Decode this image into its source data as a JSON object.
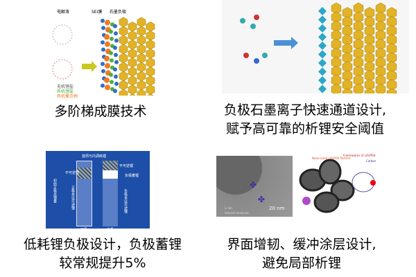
{
  "panels": [
    {
      "caption": [
        "多阶梯成膜技术"
      ],
      "figure_labels": {
        "electrolyte": "电解液",
        "sei": "SEI膜",
        "anode": "石墨负极",
        "legend": [
          "无机锂盐",
          "有机锂盐",
          "有机聚合物"
        ]
      },
      "colors": {
        "inorganic": "#2f6fc9",
        "organic": "#4caf3f",
        "polymer": "#f07a22",
        "graphite": "#e2b326"
      }
    },
    {
      "caption": [
        "负极石墨离子快速通道设计,",
        "赋予高可靠的析锂安全阈值"
      ],
      "colors": {
        "hex": "#2aa7c9",
        "graphite": "#e2b326",
        "arrow": "#4a90d9"
      }
    },
    {
      "caption": [
        "低耗锂负极设计，负极蓄锂",
        "较常规提升5%"
      ],
      "figure_labels": {
        "top": "首周与内调耗锂",
        "irrev1": "不可逆锂",
        "irrev2": "不可逆锂",
        "total": "初始正极总锂量",
        "cathode_rev": "正极本征可逆锂",
        "anode_store": "负极蓄锂",
        "anode_rev": "负极本征可逆锂",
        "cathode": "正极",
        "anode": "负极"
      },
      "colors": {
        "bg": "#1d4fa8"
      }
    },
    {
      "caption": [
        "界面增韧、缓冲涂层设计,",
        "避免局部析锂"
      ],
      "figure_labels": {
        "scale": "20 nm",
        "li_ion": "Li-ion",
        "solvent": "Solvent molecule",
        "nano": "Nano-sized LiFePO4 Particle",
        "framework": "Frameworks of LiFePO4",
        "carbon": "Carbon"
      }
    }
  ]
}
